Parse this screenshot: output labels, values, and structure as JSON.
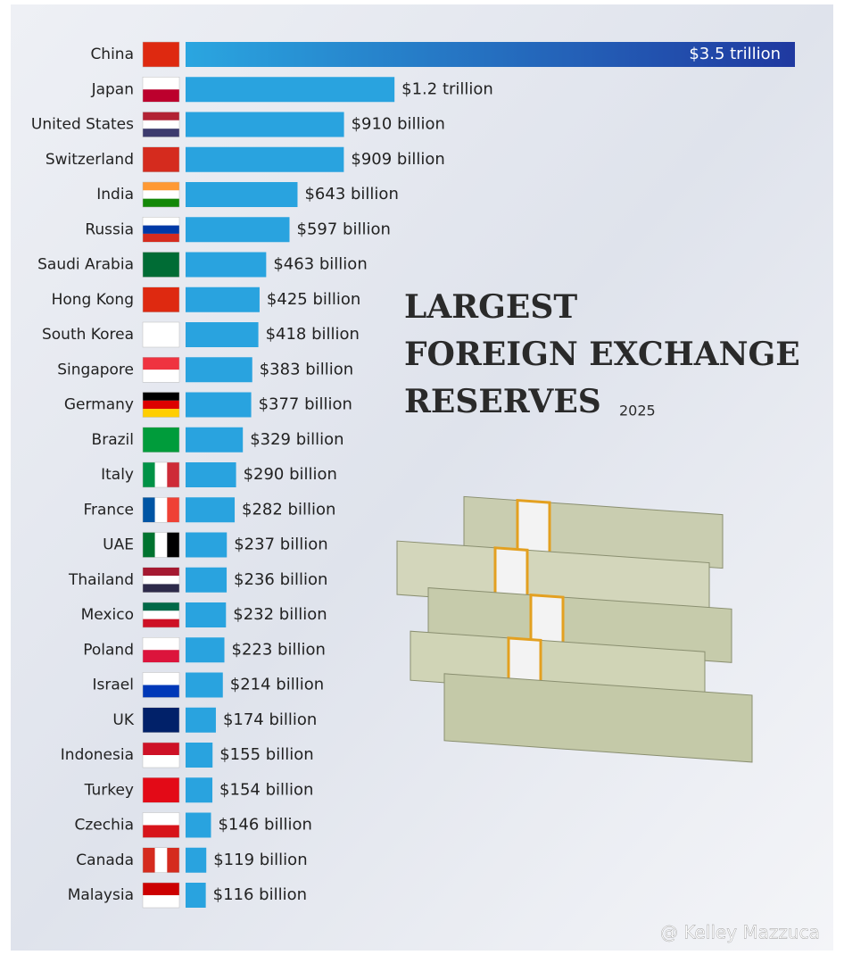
{
  "chart_data": {
    "type": "bar",
    "orientation": "horizontal",
    "title": "LARGEST FOREIGN EXCHANGE RESERVES",
    "subtitle": "2025",
    "categories": [
      "China",
      "Japan",
      "United States",
      "Switzerland",
      "India",
      "Russia",
      "Saudi Arabia",
      "Hong Kong",
      "South Korea",
      "Singapore",
      "Germany",
      "Brazil",
      "Italy",
      "France",
      "UAE",
      "Thailand",
      "Mexico",
      "Poland",
      "Israel",
      "UK",
      "Indonesia",
      "Turkey",
      "Czechia",
      "Canada",
      "Malaysia"
    ],
    "values": [
      3500,
      1200,
      910,
      909,
      643,
      597,
      463,
      425,
      418,
      383,
      377,
      329,
      290,
      282,
      237,
      236,
      232,
      223,
      214,
      174,
      155,
      154,
      146,
      119,
      116
    ],
    "value_labels": [
      "$3.5 trillion",
      "$1.2 trillion",
      "$910 billion",
      "$909 billion",
      "$643 billion",
      "$597 billion",
      "$463 billion",
      "$425 billion",
      "$418 billion",
      "$383 billion",
      "$377 billion",
      "$329 billion",
      "$290 billion",
      "$282 billion",
      "$237 billion",
      "$236 billion",
      "$232 billion",
      "$223 billion",
      "$214 billion",
      "$174 billion",
      "$155 billion",
      "$154 billion",
      "$146 billion",
      "$119 billion",
      "$116 billion"
    ],
    "color": "#29a3df",
    "watermark": "@ Kelley Mazzuca"
  }
}
